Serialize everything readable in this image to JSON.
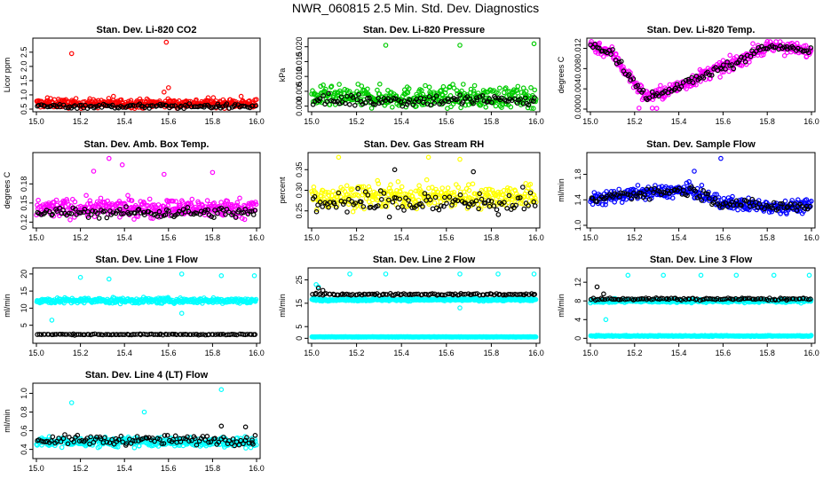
{
  "title": "NWR_060815  2.5 Min. Std. Dev. Diagnostics",
  "colors": {
    "red": "#ff0000",
    "green": "#00cc00",
    "magenta": "#ff00ff",
    "yellow": "#ffff00",
    "blue": "#0000ff",
    "cyan": "#00ffff",
    "black": "#000000"
  },
  "chart_data": [
    {
      "type": "scatter",
      "title": "Stan. Dev. Li-820 CO2",
      "ylabel": "Licor ppm",
      "xlim": [
        15.0,
        16.0
      ],
      "ylim": [
        0.5,
        2.9
      ],
      "xticks": [
        "15.0",
        "15.2",
        "15.4",
        "15.6",
        "15.8",
        "16.0"
      ],
      "yticks": [
        "0.5",
        "1.0",
        "1.5",
        "2.0",
        "2.5"
      ],
      "series": [
        {
          "name": "primary",
          "color": "red",
          "base": 0.7,
          "spread": 0.15,
          "points": [
            [
              15.16,
              2.45
            ],
            [
              15.59,
              2.85
            ],
            [
              15.6,
              1.25
            ],
            [
              15.58,
              1.1
            ],
            [
              15.05,
              0.9
            ],
            [
              15.1,
              0.85
            ],
            [
              15.35,
              0.95
            ],
            [
              15.78,
              0.9
            ],
            [
              15.93,
              0.95
            ]
          ]
        },
        {
          "name": "secondary",
          "color": "black",
          "base": 0.6,
          "spread": 0.08,
          "points": []
        }
      ]
    },
    {
      "type": "scatter",
      "title": "Stan. Dev. Li-820 Pressure",
      "ylabel": "kPa",
      "xlim": [
        15.0,
        16.0
      ],
      "ylim": [
        -0.001,
        0.022
      ],
      "xticks": [
        "15.0",
        "15.2",
        "15.4",
        "15.6",
        "15.8",
        "16.0"
      ],
      "yticks": [
        "0.000",
        "0.005",
        "0.010",
        "0.015",
        "0.020"
      ],
      "series": [
        {
          "name": "primary",
          "color": "green",
          "base": 0.003,
          "spread": 0.0035,
          "points": [
            [
              15.33,
              0.0205
            ],
            [
              15.66,
              0.0205
            ],
            [
              15.99,
              0.021
            ]
          ]
        },
        {
          "name": "secondary",
          "color": "black",
          "base": 0.002,
          "spread": 0.002,
          "points": []
        }
      ]
    },
    {
      "type": "scatter",
      "title": "Stan. Dev. Li-820 Temp.",
      "ylabel": "degrees C",
      "xlim": [
        15.0,
        16.0
      ],
      "ylim": [
        0.0,
        0.0135
      ],
      "xticks": [
        "15.0",
        "15.2",
        "15.4",
        "15.6",
        "15.8",
        "16.0"
      ],
      "yticks": [
        "0.000",
        "0.004",
        "0.008",
        "0.012"
      ],
      "curve": [
        [
          15.0,
          0.0128
        ],
        [
          15.1,
          0.011
        ],
        [
          15.2,
          0.005
        ],
        [
          15.25,
          0.0025
        ],
        [
          15.35,
          0.0035
        ],
        [
          15.45,
          0.0055
        ],
        [
          15.55,
          0.0075
        ],
        [
          15.65,
          0.009
        ],
        [
          15.75,
          0.0115
        ],
        [
          15.85,
          0.0125
        ],
        [
          15.95,
          0.0115
        ],
        [
          16.0,
          0.0115
        ]
      ],
      "series": [
        {
          "name": "primary",
          "color": "magenta",
          "base": 0,
          "spread": 0.0013,
          "points": [
            [
              15.22,
              0.0002
            ],
            [
              15.28,
              0.0002
            ],
            [
              15.3,
              0.0001
            ]
          ]
        },
        {
          "name": "secondary",
          "color": "black",
          "base": 0,
          "spread": 0.0008,
          "points": []
        }
      ]
    },
    {
      "type": "scatter",
      "title": "Stan. Dev. Amb. Box Temp.",
      "ylabel": "degrees C",
      "xlim": [
        15.0,
        16.0
      ],
      "ylim": [
        0.115,
        0.225
      ],
      "xticks": [
        "15.0",
        "15.2",
        "15.4",
        "15.6",
        "15.8",
        "16.0"
      ],
      "yticks": [
        "0.12",
        "0.15",
        "0.18"
      ],
      "series": [
        {
          "name": "primary",
          "color": "magenta",
          "base": 0.142,
          "spread": 0.014,
          "points": [
            [
              15.33,
              0.22
            ],
            [
              15.39,
              0.21
            ],
            [
              15.26,
              0.2
            ],
            [
              15.58,
              0.195
            ],
            [
              15.8,
              0.198
            ]
          ]
        },
        {
          "name": "secondary",
          "color": "black",
          "base": 0.135,
          "spread": 0.008,
          "points": []
        }
      ]
    },
    {
      "type": "scatter",
      "title": "Stan. Dev. Gas Stream RH",
      "ylabel": "percent",
      "xlim": [
        15.0,
        16.0
      ],
      "ylim": [
        0.215,
        0.385
      ],
      "xticks": [
        "15.0",
        "15.2",
        "15.4",
        "15.6",
        "15.8",
        "16.0"
      ],
      "yticks": [
        "0.25",
        "0.30",
        "0.35"
      ],
      "series": [
        {
          "name": "primary",
          "color": "yellow",
          "base": 0.285,
          "spread": 0.028,
          "points": [
            [
              15.12,
              0.38
            ],
            [
              15.52,
              0.38
            ],
            [
              15.66,
              0.375
            ]
          ]
        },
        {
          "name": "secondary",
          "color": "black",
          "base": 0.27,
          "spread": 0.03,
          "points": [
            [
              15.37,
              0.35
            ],
            [
              15.72,
              0.345
            ]
          ]
        }
      ]
    },
    {
      "type": "scatter",
      "title": "Stan. Dev. Sample Flow",
      "ylabel": "ml/min",
      "xlim": [
        15.0,
        16.0
      ],
      "ylim": [
        1.0,
        2.1
      ],
      "xticks": [
        "15.0",
        "15.2",
        "15.4",
        "15.6",
        "15.8",
        "16.0"
      ],
      "yticks": [
        "1.0",
        "1.4",
        "1.8"
      ],
      "curve": [
        [
          15.0,
          1.4
        ],
        [
          15.2,
          1.5
        ],
        [
          15.45,
          1.55
        ],
        [
          15.6,
          1.35
        ],
        [
          15.8,
          1.3
        ],
        [
          16.0,
          1.3
        ]
      ],
      "series": [
        {
          "name": "primary",
          "color": "blue",
          "base": 0,
          "spread": 0.1,
          "points": [
            [
              15.59,
              2.05
            ],
            [
              15.47,
              1.85
            ]
          ]
        },
        {
          "name": "secondary",
          "color": "black",
          "base": 0,
          "spread": 0.08,
          "points": []
        }
      ]
    },
    {
      "type": "scatter",
      "title": "Stan. Dev. Line 1 Flow",
      "ylabel": "ml/min",
      "xlim": [
        15.0,
        16.0
      ],
      "ylim": [
        0.5,
        21.0
      ],
      "xticks": [
        "15.0",
        "15.2",
        "15.4",
        "15.6",
        "15.8",
        "16.0"
      ],
      "yticks": [
        "5",
        "10",
        "15",
        "20"
      ],
      "series": [
        {
          "name": "primary",
          "color": "cyan",
          "base": 12.2,
          "spread": 0.8,
          "points": [
            [
              15.07,
              6.5
            ],
            [
              15.2,
              19
            ],
            [
              15.33,
              18.5
            ],
            [
              15.66,
              20
            ],
            [
              15.84,
              19.5
            ],
            [
              15.99,
              19.5
            ],
            [
              15.66,
              8.5
            ]
          ]
        },
        {
          "name": "secondary",
          "color": "black",
          "base": 2.3,
          "spread": 0.15,
          "points": []
        }
      ]
    },
    {
      "type": "scatter",
      "title": "Stan. Dev. Line 2 Flow",
      "ylabel": "ml/min",
      "xlim": [
        15.0,
        16.0
      ],
      "ylim": [
        -1.0,
        29.0
      ],
      "xticks": [
        "15.0",
        "15.2",
        "15.4",
        "15.6",
        "15.8",
        "16.0"
      ],
      "yticks": [
        "0",
        "5",
        "15",
        "25"
      ],
      "series": [
        {
          "name": "primary",
          "color": "cyan",
          "base": 16.5,
          "spread": 0.5,
          "points": [
            [
              15.02,
              23
            ],
            [
              15.03,
              22
            ],
            [
              15.17,
              27.5
            ],
            [
              15.33,
              27.5
            ],
            [
              15.66,
              27.5
            ],
            [
              15.83,
              27.5
            ],
            [
              15.99,
              27.5
            ],
            [
              15.66,
              13
            ]
          ]
        },
        {
          "name": "secondary",
          "color": "black",
          "base": 18.8,
          "spread": 0.4,
          "points": [
            [
              15.03,
              21.5
            ],
            [
              15.05,
              20.5
            ]
          ]
        },
        {
          "name": "baseline",
          "color": "cyan",
          "base": 0.6,
          "spread": 0.1,
          "points": []
        }
      ]
    },
    {
      "type": "scatter",
      "title": "Stan. Dev. Line 3 Flow",
      "ylabel": "ml/min",
      "xlim": [
        15.0,
        16.0
      ],
      "ylim": [
        -0.5,
        14.5
      ],
      "xticks": [
        "15.0",
        "15.2",
        "15.4",
        "15.6",
        "15.8",
        "16.0"
      ],
      "yticks": [
        "0",
        "4",
        "8",
        "12"
      ],
      "series": [
        {
          "name": "primary",
          "color": "cyan",
          "base": 8.0,
          "spread": 0.35,
          "points": [
            [
              15.07,
              4
            ],
            [
              15.17,
              13.5
            ],
            [
              15.33,
              13.5
            ],
            [
              15.5,
              13.5
            ],
            [
              15.66,
              13.5
            ],
            [
              15.83,
              13.5
            ],
            [
              15.99,
              13.5
            ]
          ]
        },
        {
          "name": "secondary",
          "color": "black",
          "base": 8.4,
          "spread": 0.25,
          "points": [
            [
              15.03,
              11
            ],
            [
              15.06,
              9.5
            ]
          ]
        },
        {
          "name": "baseline",
          "color": "cyan",
          "base": 0.5,
          "spread": 0.1,
          "points": []
        }
      ]
    },
    {
      "type": "scatter",
      "title": "Stan. Dev. Line 4 (LT) Flow",
      "ylabel": "ml/min",
      "xlim": [
        15.0,
        16.0
      ],
      "ylim": [
        0.33,
        1.08
      ],
      "xticks": [
        "15.0",
        "15.2",
        "15.4",
        "15.6",
        "15.8",
        "16.0"
      ],
      "yticks": [
        "0.4",
        "0.6",
        "0.8",
        "1.0"
      ],
      "series": [
        {
          "name": "primary",
          "color": "cyan",
          "base": 0.48,
          "spread": 0.05,
          "points": [
            [
              15.84,
              1.04
            ],
            [
              15.16,
              0.9
            ],
            [
              15.49,
              0.8
            ]
          ]
        },
        {
          "name": "secondary",
          "color": "black",
          "base": 0.5,
          "spread": 0.05,
          "points": [
            [
              15.84,
              0.65
            ],
            [
              15.95,
              0.64
            ],
            [
              15.98,
              0.5
            ]
          ]
        }
      ]
    }
  ]
}
